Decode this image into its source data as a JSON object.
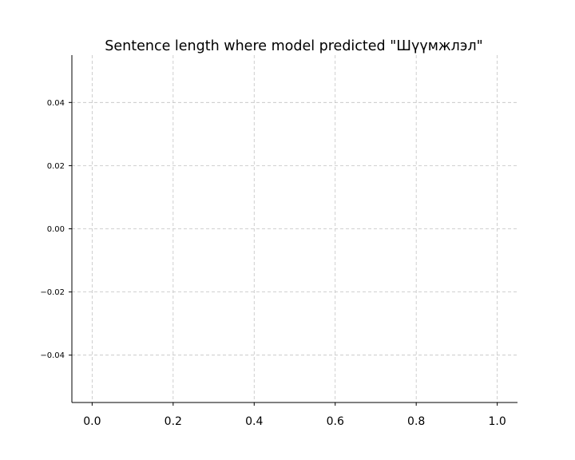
{
  "chart_data": {
    "type": "line",
    "title": "Sentence length where model predicted \"Шүүмжлэл\"",
    "xlabel": "",
    "ylabel": "",
    "xlim": [
      -0.05,
      1.05
    ],
    "ylim": [
      -0.055,
      0.055
    ],
    "x_ticks": [
      0.0,
      0.2,
      0.4,
      0.6,
      0.8,
      1.0
    ],
    "x_tick_labels": [
      "0.0",
      "0.2",
      "0.4",
      "0.6",
      "0.8",
      "1.0"
    ],
    "y_ticks": [
      0.04,
      0.02,
      0.0,
      -0.02,
      -0.04
    ],
    "y_tick_labels": [
      "0.04",
      "0.02",
      "0.00",
      "−0.02",
      "−0.04"
    ],
    "grid": true,
    "series": []
  }
}
